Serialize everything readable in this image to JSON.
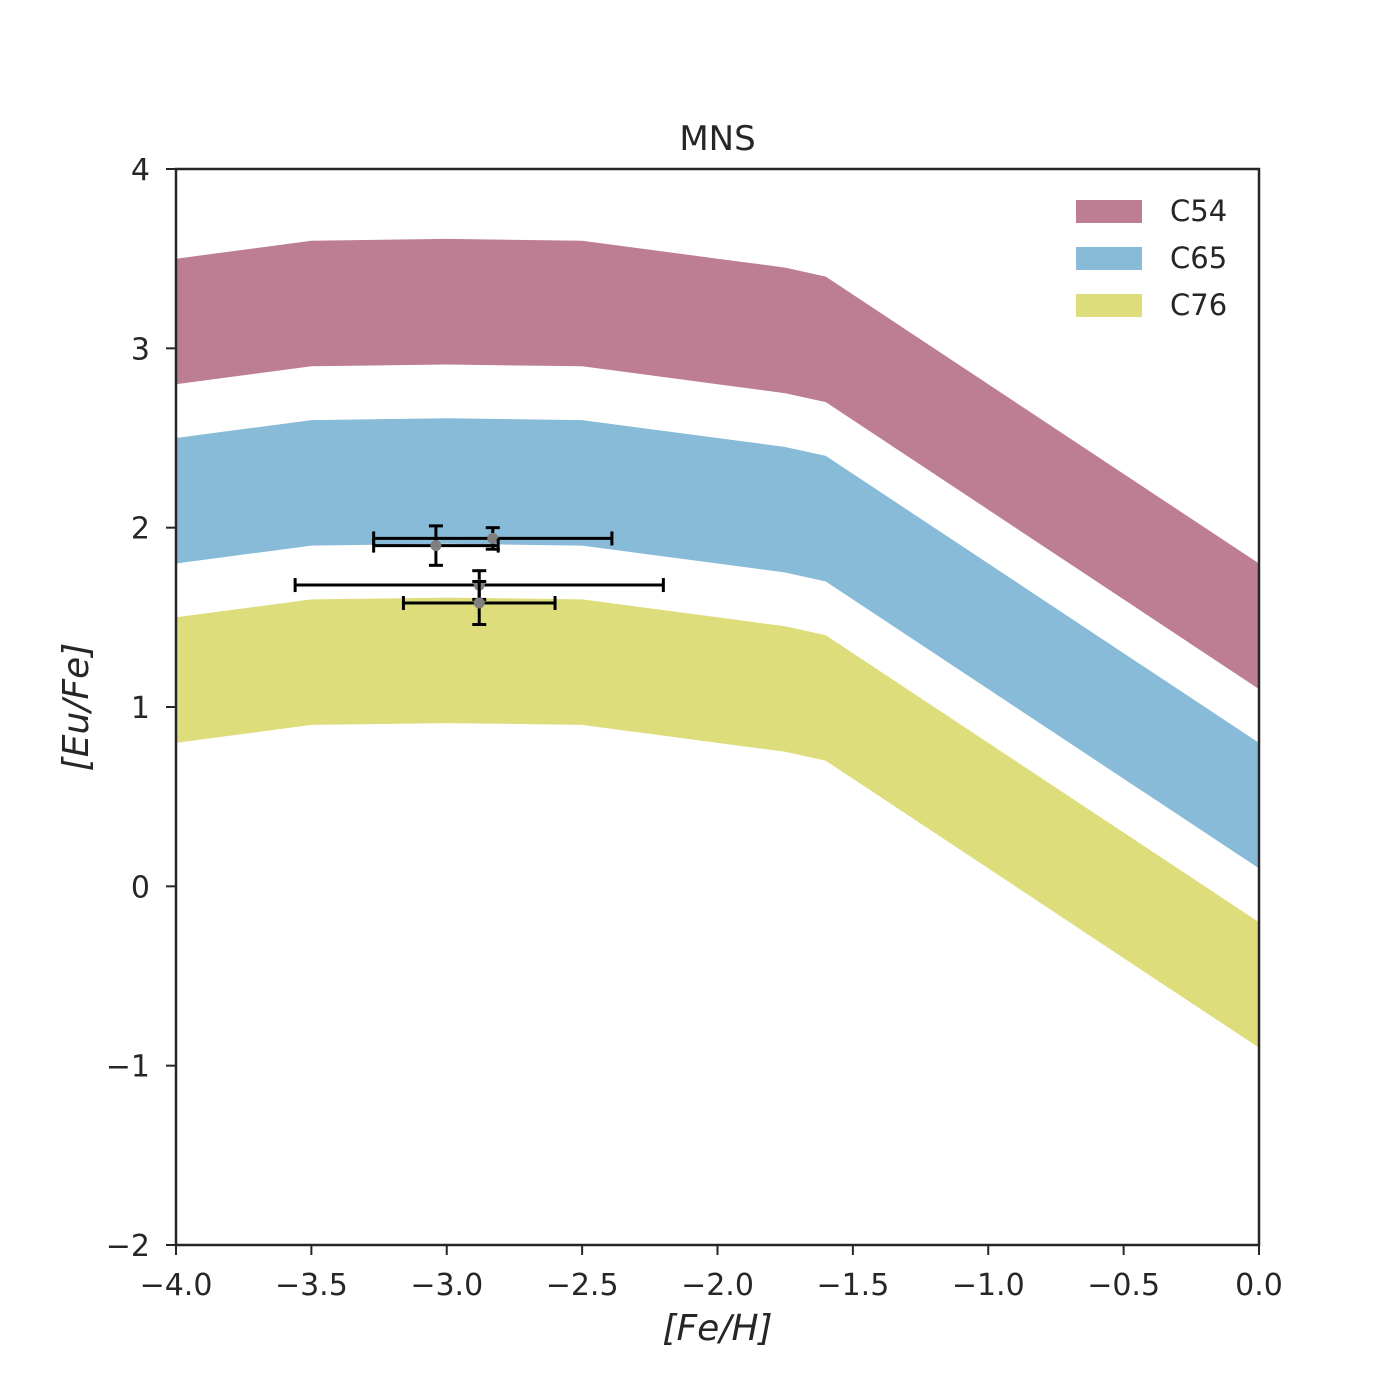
{
  "chart_data": {
    "type": "area",
    "title": "MNS",
    "xlabel": "[Fe/H]",
    "ylabel": "[Eu/Fe]",
    "xlim": [
      -4.0,
      0.0
    ],
    "ylim": [
      -2,
      4
    ],
    "xticks": [
      -4.0,
      -3.5,
      -3.0,
      -2.5,
      -2.0,
      -1.5,
      -1.0,
      -0.5,
      0.0
    ],
    "xtick_labels": [
      "−4.0",
      "−3.5",
      "−3.0",
      "−2.5",
      "−2.0",
      "−1.5",
      "−1.0",
      "−0.5",
      "0.0"
    ],
    "yticks": [
      -2,
      -1,
      0,
      1,
      2,
      3,
      4
    ],
    "ytick_labels": [
      "−2",
      "−1",
      "0",
      "1",
      "2",
      "3",
      "4"
    ],
    "grid": false,
    "legend_position": "top-right",
    "x": [
      -4.0,
      -3.5,
      -3.0,
      -2.5,
      -2.0,
      -1.75,
      -1.6,
      -1.0,
      -0.5,
      0.0
    ],
    "series": [
      {
        "name": "C54",
        "color": "#bd7e94",
        "upper": [
          3.5,
          3.6,
          3.61,
          3.6,
          3.5,
          3.45,
          3.4,
          2.8,
          2.3,
          1.8
        ],
        "lower": [
          2.8,
          2.9,
          2.91,
          2.9,
          2.8,
          2.75,
          2.7,
          2.1,
          1.6,
          1.1
        ]
      },
      {
        "name": "C65",
        "color": "#87bbd8",
        "upper": [
          2.5,
          2.6,
          2.61,
          2.6,
          2.5,
          2.45,
          2.4,
          1.8,
          1.3,
          0.8
        ],
        "lower": [
          1.8,
          1.9,
          1.91,
          1.9,
          1.8,
          1.75,
          1.7,
          1.1,
          0.6,
          0.1
        ]
      },
      {
        "name": "C76",
        "color": "#dedd7c",
        "upper": [
          1.5,
          1.6,
          1.61,
          1.6,
          1.5,
          1.45,
          1.4,
          0.8,
          0.3,
          -0.2
        ],
        "lower": [
          0.8,
          0.9,
          0.91,
          0.9,
          0.8,
          0.75,
          0.7,
          0.1,
          -0.4,
          -0.9
        ]
      }
    ],
    "observations": {
      "marker_color": "#808080",
      "errorbar_color": "#000000",
      "points": [
        {
          "x": -2.83,
          "y": 1.94,
          "xerr": 0.44,
          "yerr": 0.06
        },
        {
          "x": -3.04,
          "y": 1.9,
          "xerr": 0.23,
          "yerr": 0.11
        },
        {
          "x": -2.88,
          "y": 1.68,
          "xerr": 0.68,
          "yerr": 0.08
        },
        {
          "x": -2.88,
          "y": 1.58,
          "xerr": 0.28,
          "yerr": 0.12
        }
      ]
    }
  }
}
